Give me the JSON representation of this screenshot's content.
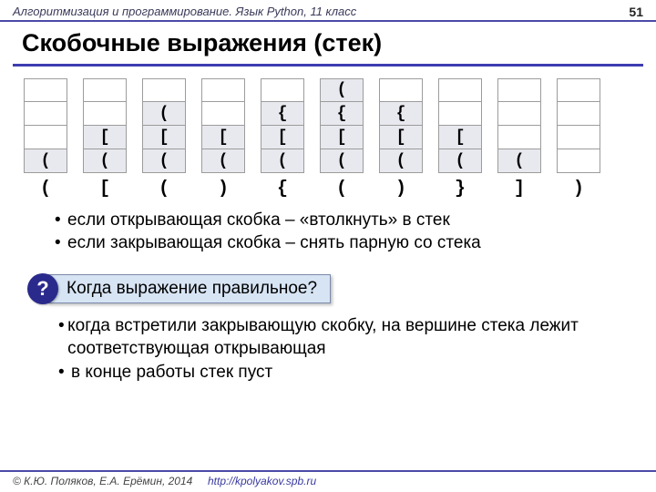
{
  "header": {
    "course": "Алгоритмизация и программирование. Язык Python, 11 класс",
    "page": "51"
  },
  "title": "Скобочные выражения (стек)",
  "stack_height": 4,
  "stacks": [
    {
      "cells": [
        "("
      ],
      "below": "("
    },
    {
      "cells": [
        "[",
        "("
      ],
      "below": "["
    },
    {
      "cells": [
        "(",
        "[",
        "("
      ],
      "below": "("
    },
    {
      "cells": [
        "[",
        "("
      ],
      "below": ")"
    },
    {
      "cells": [
        "{",
        "[",
        "("
      ],
      "below": "{"
    },
    {
      "cells": [
        "(",
        "{",
        "[",
        "("
      ],
      "below": "("
    },
    {
      "cells": [
        "{",
        "[",
        "("
      ],
      "below": ")"
    },
    {
      "cells": [
        "[",
        "("
      ],
      "below": "}"
    },
    {
      "cells": [
        "("
      ],
      "below": "]"
    },
    {
      "cells": [],
      "below": ")"
    }
  ],
  "colors": {
    "cell_border": "#9c9c9c",
    "cell_filled_bg": "#e8e9ef",
    "accent": "#3d3db0",
    "question_circle_bg": "#2a2a8c",
    "question_box_bg": "#d7e4f4"
  },
  "rules": [
    "если открывающая скобка – «втолкнуть» в стек",
    "если закрывающая скобка – снять парную со стека"
  ],
  "question": {
    "mark": "?",
    "text": "Когда выражение правильное?"
  },
  "answers": [
    "когда встретили закрывающую скобку, на вершине стека лежит соответствующая открывающая",
    "в конце работы стек пуст"
  ],
  "footer": {
    "copyright": "© К.Ю. Поляков, Е.А. Ерёмин, 2014",
    "url": "http://kpolyakov.spb.ru"
  }
}
